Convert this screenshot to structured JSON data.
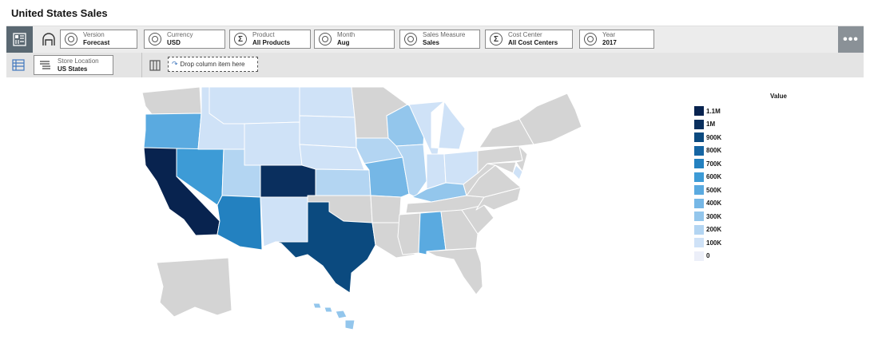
{
  "title": "United States Sales",
  "toolbar": {
    "chips": [
      {
        "label": "Version",
        "value": "Forecast",
        "icon": "circle"
      },
      {
        "label": "Currency",
        "value": "USD",
        "icon": "circle"
      },
      {
        "label": "Product",
        "value": "All Products",
        "icon": "sigma"
      },
      {
        "label": "Month",
        "value": "Aug",
        "icon": "circle"
      },
      {
        "label": "Sales Measure",
        "value": "Sales",
        "icon": "circle"
      },
      {
        "label": "Cost Center",
        "value": "All Cost Centers",
        "icon": "sigma"
      },
      {
        "label": "Year",
        "value": "2017",
        "icon": "circle"
      }
    ],
    "more_label": "•••"
  },
  "rows": {
    "chip": {
      "label": "Store Location",
      "value": "US States"
    },
    "drop_label": "Drop column item here"
  },
  "legend": {
    "title": "Value",
    "items": [
      {
        "label": "1.1M",
        "color": "#08234f"
      },
      {
        "label": "1M",
        "color": "#0a2f5e"
      },
      {
        "label": "900K",
        "color": "#0b4a7f"
      },
      {
        "label": "800K",
        "color": "#1565a3"
      },
      {
        "label": "700K",
        "color": "#2381c0"
      },
      {
        "label": "600K",
        "color": "#3d9bd6"
      },
      {
        "label": "500K",
        "color": "#5aaae0"
      },
      {
        "label": "400K",
        "color": "#75b7e6"
      },
      {
        "label": "300K",
        "color": "#93c6ec"
      },
      {
        "label": "200K",
        "color": "#b3d5f2"
      },
      {
        "label": "100K",
        "color": "#cfe2f7"
      },
      {
        "label": "0",
        "color": "#eceff9"
      }
    ]
  },
  "map": {
    "no_data_color": "#d4d4d4",
    "states": [
      {
        "name": "California",
        "value": 1100000
      },
      {
        "name": "Colorado",
        "value": 1000000
      },
      {
        "name": "Texas",
        "value": 900000
      },
      {
        "name": "Arizona",
        "value": 700000
      },
      {
        "name": "Nevada",
        "value": 600000
      },
      {
        "name": "Oregon",
        "value": 500000
      },
      {
        "name": "Alabama",
        "value": 500000
      },
      {
        "name": "Missouri",
        "value": 400000
      },
      {
        "name": "Wisconsin",
        "value": 300000
      },
      {
        "name": "Kentucky",
        "value": 300000
      },
      {
        "name": "Kansas",
        "value": 200000
      },
      {
        "name": "Utah",
        "value": 200000
      },
      {
        "name": "Iowa",
        "value": 200000
      },
      {
        "name": "Illinois",
        "value": 200000
      },
      {
        "name": "Hawaii",
        "value": 300000
      },
      {
        "name": "New Mexico",
        "value": 100000
      },
      {
        "name": "Montana",
        "value": 100000
      },
      {
        "name": "Idaho",
        "value": 100000
      },
      {
        "name": "North Dakota",
        "value": 100000
      },
      {
        "name": "South Dakota",
        "value": 100000
      },
      {
        "name": "Wyoming",
        "value": 100000
      },
      {
        "name": "Nebraska",
        "value": 100000
      },
      {
        "name": "Michigan",
        "value": 100000
      },
      {
        "name": "Ohio",
        "value": 100000
      },
      {
        "name": "Indiana",
        "value": 100000
      },
      {
        "name": "Delaware",
        "value": 100000
      }
    ]
  }
}
